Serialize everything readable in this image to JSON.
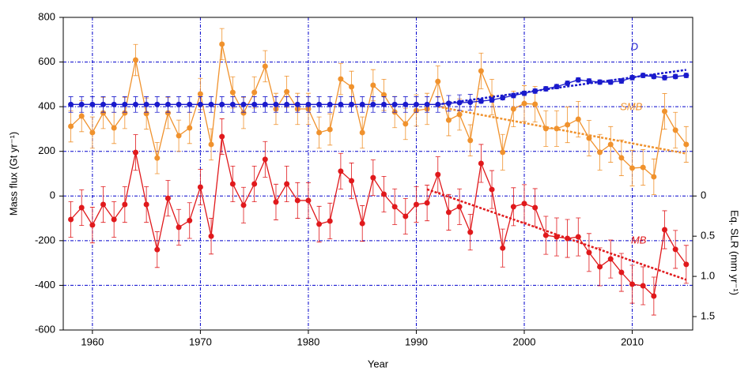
{
  "chart_data": {
    "type": "line",
    "xlabel": "Year",
    "ylabel": "Mass flux (Gt yr⁻¹)",
    "y2label": "Eq. SLR (mm yr⁻¹)",
    "x": [
      1958,
      1959,
      1960,
      1961,
      1962,
      1963,
      1964,
      1965,
      1966,
      1967,
      1968,
      1969,
      1970,
      1971,
      1972,
      1973,
      1974,
      1975,
      1976,
      1977,
      1978,
      1979,
      1980,
      1981,
      1982,
      1983,
      1984,
      1985,
      1986,
      1987,
      1988,
      1989,
      1990,
      1991,
      1992,
      1993,
      1994,
      1995,
      1996,
      1997,
      1998,
      1999,
      2000,
      2001,
      2002,
      2003,
      2004,
      2005,
      2006,
      2007,
      2008,
      2009,
      2010,
      2011,
      2012,
      2013,
      2014,
      2015
    ],
    "series": [
      {
        "name": "D",
        "color": "#1a1acc",
        "values": [
          410,
          410,
          410,
          410,
          410,
          410,
          410,
          410,
          410,
          410,
          410,
          410,
          410,
          410,
          410,
          410,
          410,
          410,
          410,
          410,
          410,
          410,
          410,
          410,
          410,
          410,
          410,
          410,
          410,
          410,
          410,
          410,
          410,
          410,
          410,
          415,
          418,
          420,
          425,
          430,
          440,
          450,
          460,
          470,
          480,
          490,
          505,
          520,
          515,
          510,
          510,
          515,
          530,
          540,
          535,
          530,
          535,
          540
        ],
        "errors": [
          35,
          35,
          35,
          35,
          35,
          35,
          35,
          35,
          35,
          35,
          35,
          35,
          35,
          35,
          35,
          35,
          35,
          35,
          35,
          35,
          35,
          35,
          35,
          35,
          35,
          35,
          35,
          35,
          35,
          35,
          35,
          35,
          35,
          35,
          35,
          35,
          35,
          35,
          10,
          10,
          10,
          10,
          10,
          10,
          10,
          10,
          10,
          10,
          10,
          10,
          10,
          10,
          10,
          10,
          10,
          10,
          10,
          10
        ]
      },
      {
        "name": "SMB",
        "color": "#f0922d",
        "values": [
          312,
          358,
          284,
          372,
          305,
          372,
          609,
          369,
          170,
          372,
          270,
          305,
          457,
          231,
          680,
          464,
          372,
          464,
          581,
          390,
          467,
          390,
          390,
          284,
          298,
          524,
          489,
          284,
          496,
          453,
          376,
          323,
          383,
          390,
          513,
          340,
          365,
          249,
          560,
          443,
          196,
          390,
          414,
          411,
          302,
          302,
          319,
          344,
          259,
          196,
          231,
          171,
          125,
          128,
          86,
          379,
          295,
          231
        ],
        "errors": [
          70,
          70,
          70,
          70,
          70,
          70,
          70,
          70,
          70,
          70,
          70,
          70,
          70,
          70,
          70,
          70,
          70,
          70,
          70,
          70,
          70,
          70,
          70,
          70,
          70,
          70,
          70,
          70,
          70,
          70,
          70,
          70,
          70,
          70,
          70,
          70,
          70,
          70,
          80,
          80,
          80,
          80,
          80,
          80,
          80,
          80,
          80,
          80,
          80,
          80,
          80,
          80,
          80,
          80,
          80,
          80,
          80,
          80
        ]
      },
      {
        "name": "MB",
        "color": "#e0191c",
        "values": [
          -105,
          -52,
          -130,
          -38,
          -105,
          -38,
          195,
          -38,
          -240,
          -10,
          -140,
          -110,
          40,
          -180,
          266,
          54,
          -41,
          54,
          164,
          -27,
          54,
          -20,
          -20,
          -126,
          -112,
          111,
          68,
          -123,
          82,
          8,
          -48,
          -91,
          -38,
          -31,
          96,
          -73,
          -48,
          -162,
          146,
          29,
          -233,
          -48,
          -34,
          -52,
          -176,
          -183,
          -190,
          -183,
          -253,
          -317,
          -282,
          -342,
          -395,
          -402,
          -448,
          -151,
          -239,
          -306
        ],
        "errors": [
          80,
          80,
          80,
          80,
          80,
          80,
          80,
          80,
          80,
          80,
          80,
          80,
          80,
          80,
          80,
          80,
          80,
          80,
          80,
          80,
          80,
          80,
          80,
          80,
          80,
          80,
          80,
          80,
          80,
          80,
          80,
          80,
          80,
          80,
          80,
          80,
          80,
          80,
          85,
          85,
          85,
          85,
          85,
          85,
          85,
          85,
          85,
          85,
          85,
          85,
          85,
          85,
          85,
          85,
          85,
          85,
          85,
          85
        ]
      }
    ],
    "trends": [
      {
        "x": [
          1992,
          2015
        ],
        "y": [
          410,
          565
        ]
      },
      {
        "x": [
          1992,
          2015
        ],
        "y": [
          400,
          190
        ]
      },
      {
        "x": [
          1991,
          2015
        ],
        "y": [
          30,
          -375
        ]
      }
    ],
    "xlim": [
      1957.3,
      2015.6
    ],
    "xticks": [
      1960,
      1970,
      1980,
      1990,
      2000,
      2010
    ],
    "ylim": [
      -600,
      800
    ],
    "yticks": [
      -600,
      -400,
      -200,
      0,
      200,
      400,
      600,
      800
    ],
    "y2lim": [
      1.667,
      -2.222
    ],
    "y2ticks": [
      0,
      0.5,
      {
        "value": 1,
        "label": "1.0"
      },
      1.5
    ],
    "grid": true,
    "grid_color": "#0000cc"
  }
}
